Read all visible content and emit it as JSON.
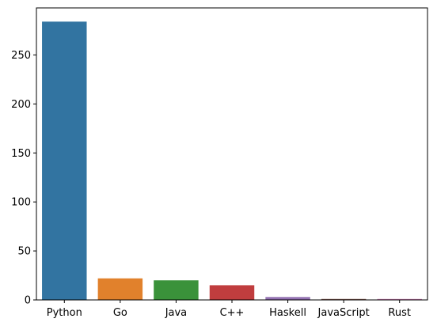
{
  "chart_data": {
    "type": "bar",
    "title": "",
    "xlabel": "",
    "ylabel": "",
    "categories": [
      "Python",
      "Go",
      "Java",
      "C++",
      "Haskell",
      "JavaScript",
      "Rust"
    ],
    "values": [
      284,
      22,
      20,
      15,
      3,
      1,
      1
    ],
    "colors": [
      "#3274a1",
      "#e1812c",
      "#3a923a",
      "#c03d3e",
      "#9372b2",
      "#845b53",
      "#d684bd"
    ],
    "ylim": [
      0,
      298
    ],
    "yticks": [
      0,
      50,
      100,
      150,
      200,
      250
    ],
    "grid": false,
    "legend": "none"
  }
}
